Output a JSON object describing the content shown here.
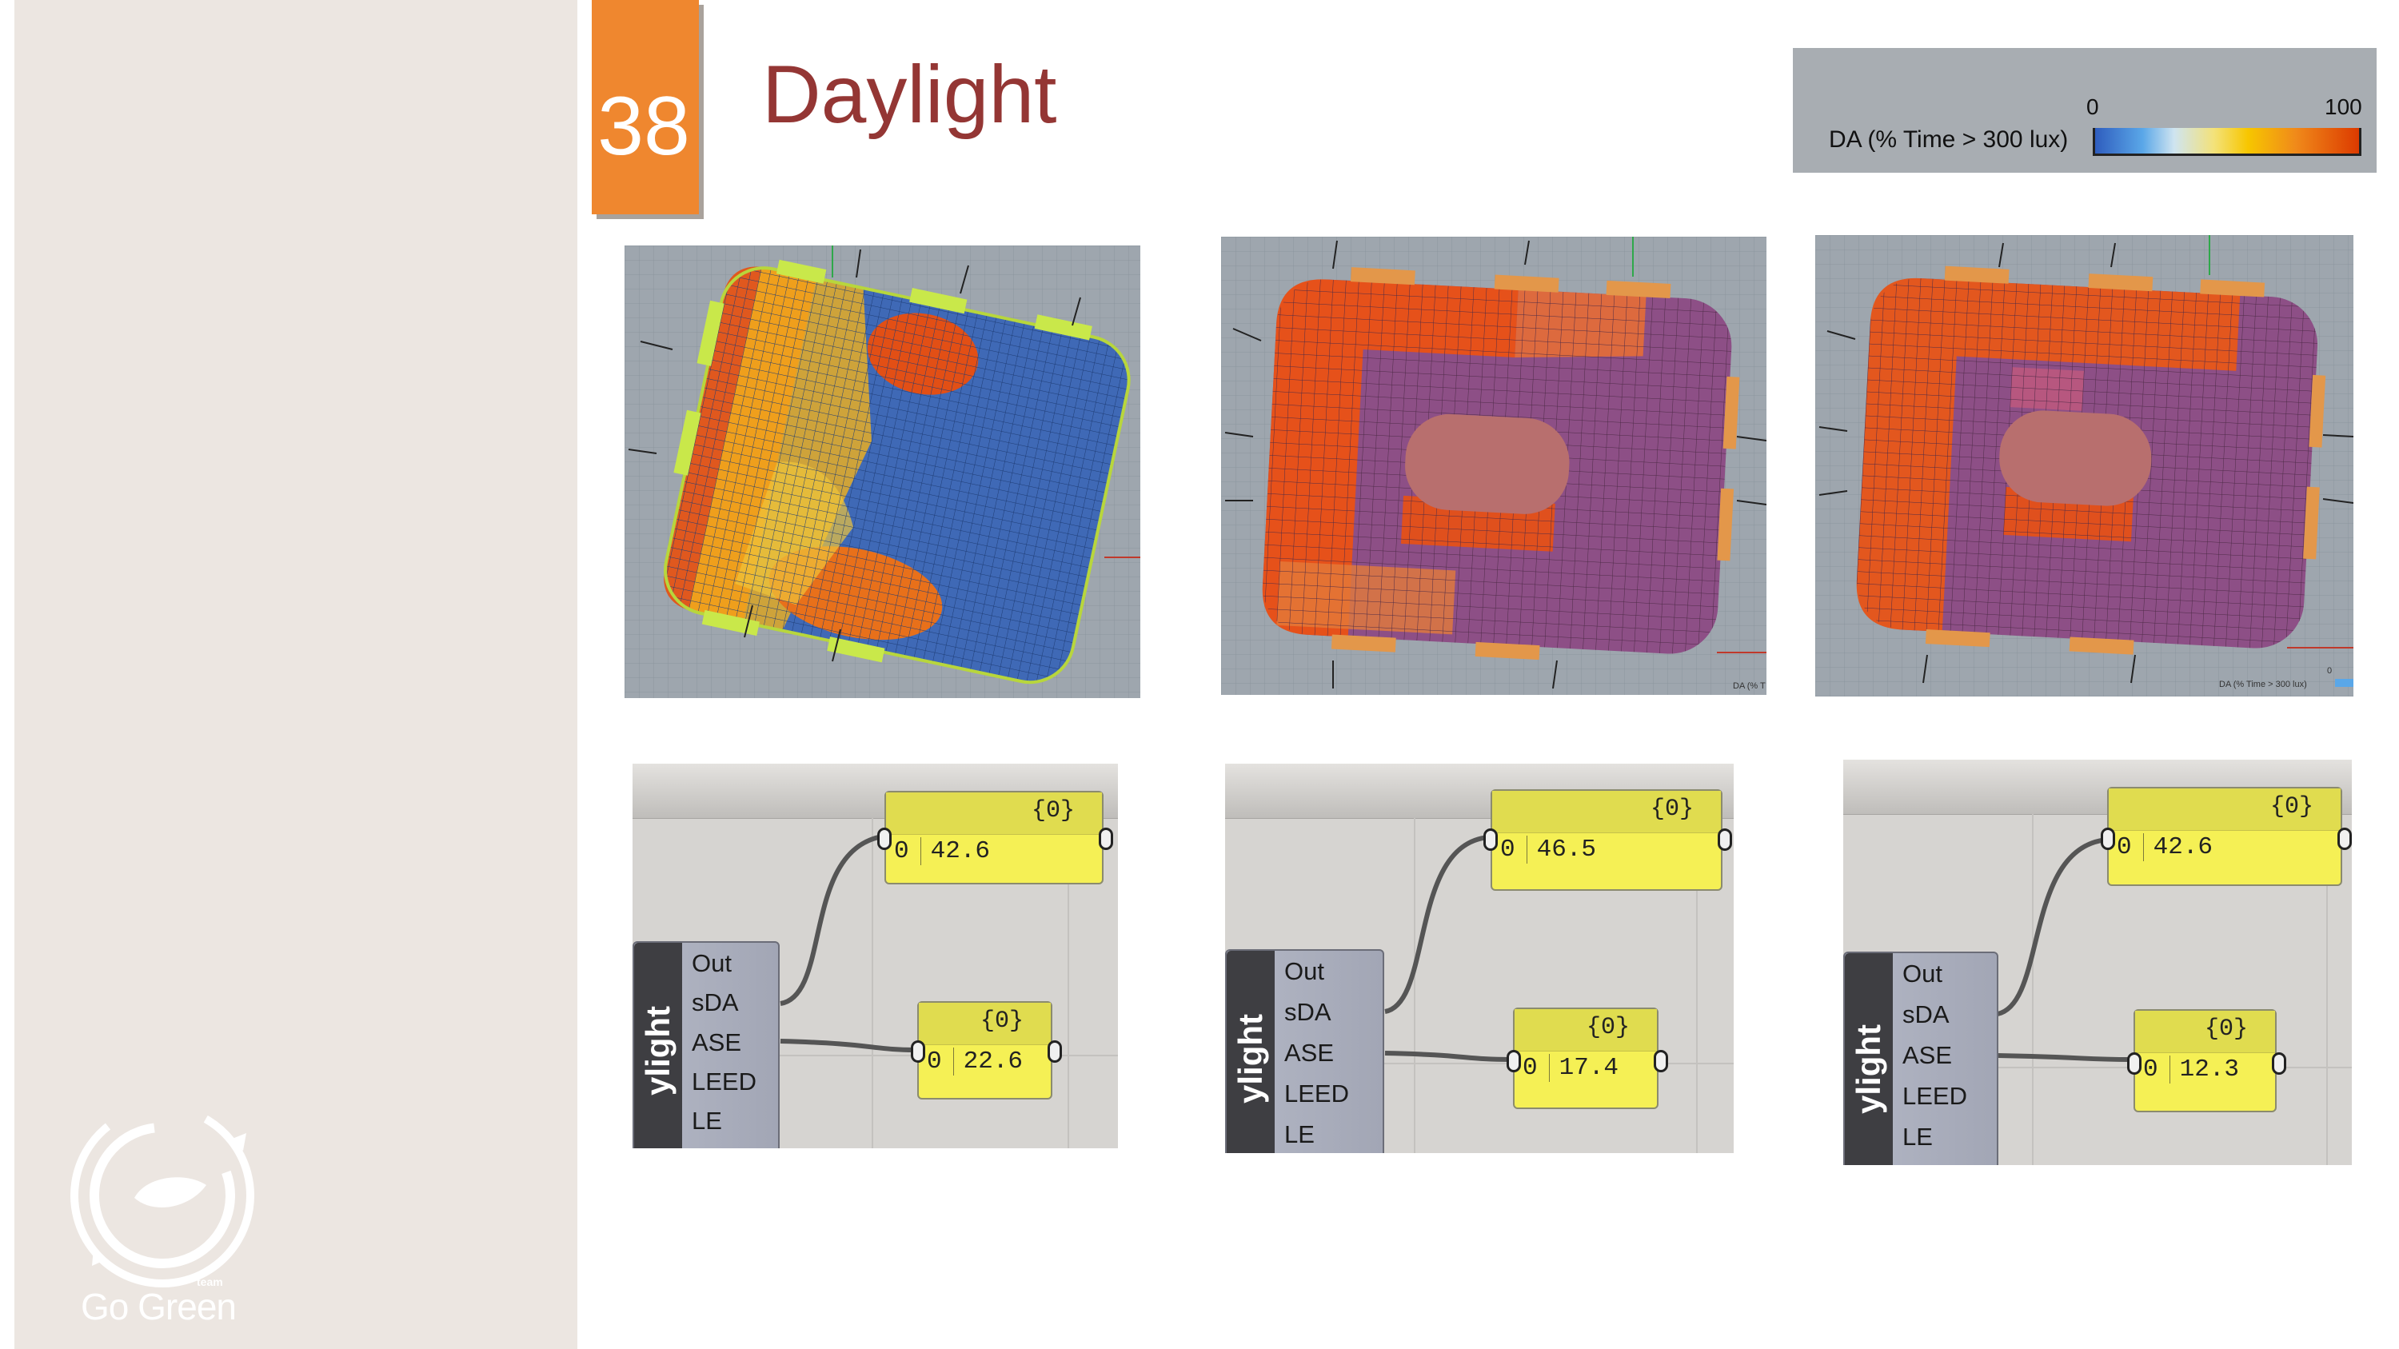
{
  "slide": {
    "number": "38",
    "title": "Daylight"
  },
  "brand": {
    "name": "Go Green",
    "tag": "team"
  },
  "legend": {
    "label": "DA (% Time > 300 lux)",
    "min": "0",
    "max": "100"
  },
  "colors": {
    "accent_orange": "#ef872f",
    "title_red": "#943634",
    "sidebar": "#ece6e1",
    "panel_yellow": "#f5f055"
  },
  "viz_labels": {
    "mid": "DA (% T",
    "right": "DA (% Time > 300 lux)",
    "right_zero": "0"
  },
  "component": {
    "name": "ylight",
    "outputs": [
      "Out",
      "sDA",
      "ASE",
      "LEED",
      "LE"
    ]
  },
  "results": [
    {
      "sda_index": "{0}",
      "sda_row": "0",
      "sda": "42.6",
      "ase_index": "{0}",
      "ase_row": "0",
      "ase": "22.6"
    },
    {
      "sda_index": "{0}",
      "sda_row": "0",
      "sda": "46.5",
      "ase_index": "{0}",
      "ase_row": "0",
      "ase": "17.4"
    },
    {
      "sda_index": "{0}",
      "sda_row": "0",
      "sda": "42.6",
      "ase_index": "{0}",
      "ase_row": "0",
      "ase": "12.3"
    }
  ]
}
